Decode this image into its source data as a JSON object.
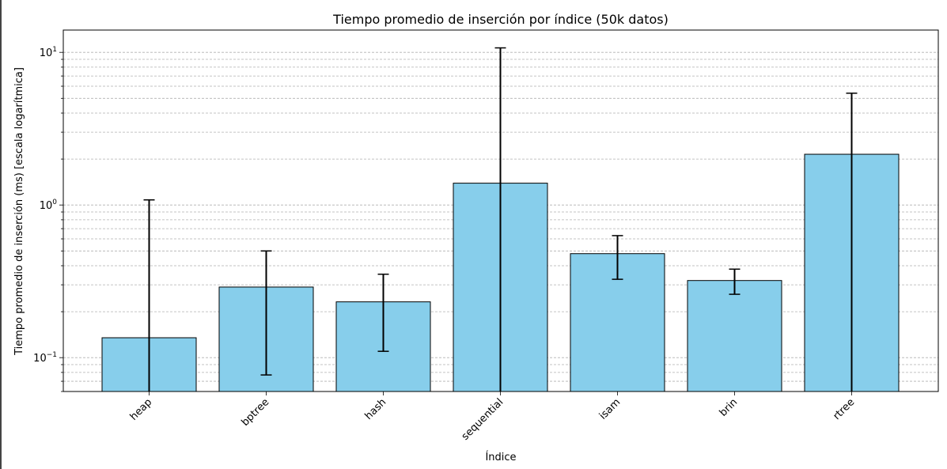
{
  "chart_data": {
    "type": "bar",
    "title": "Tiempo promedio de inserción por índice (50k datos)",
    "xlabel": "Índice",
    "ylabel": "Tiempo promedio de inserción (ms) [escala logarítmica]",
    "yscale": "log",
    "ylim": [
      0.06,
      14
    ],
    "yticks": [
      {
        "value": 0.1,
        "base": "10",
        "exp": "−1"
      },
      {
        "value": 1,
        "base": "10",
        "exp": "0"
      },
      {
        "value": 10,
        "base": "10",
        "exp": "1"
      }
    ],
    "grid": true,
    "bar_color": "#87CEEB",
    "edge_color": "#000000",
    "categories": [
      "heap",
      "bptree",
      "hash",
      "sequential",
      "isam",
      "brin",
      "rtree"
    ],
    "values": [
      0.135,
      0.29,
      0.232,
      1.39,
      0.48,
      0.32,
      2.15
    ],
    "error_upper": [
      1.08,
      0.5,
      0.352,
      10.7,
      0.63,
      0.38,
      5.4
    ],
    "error_lower": [
      0.06,
      0.077,
      0.11,
      0.06,
      0.326,
      0.26,
      0.06
    ]
  }
}
